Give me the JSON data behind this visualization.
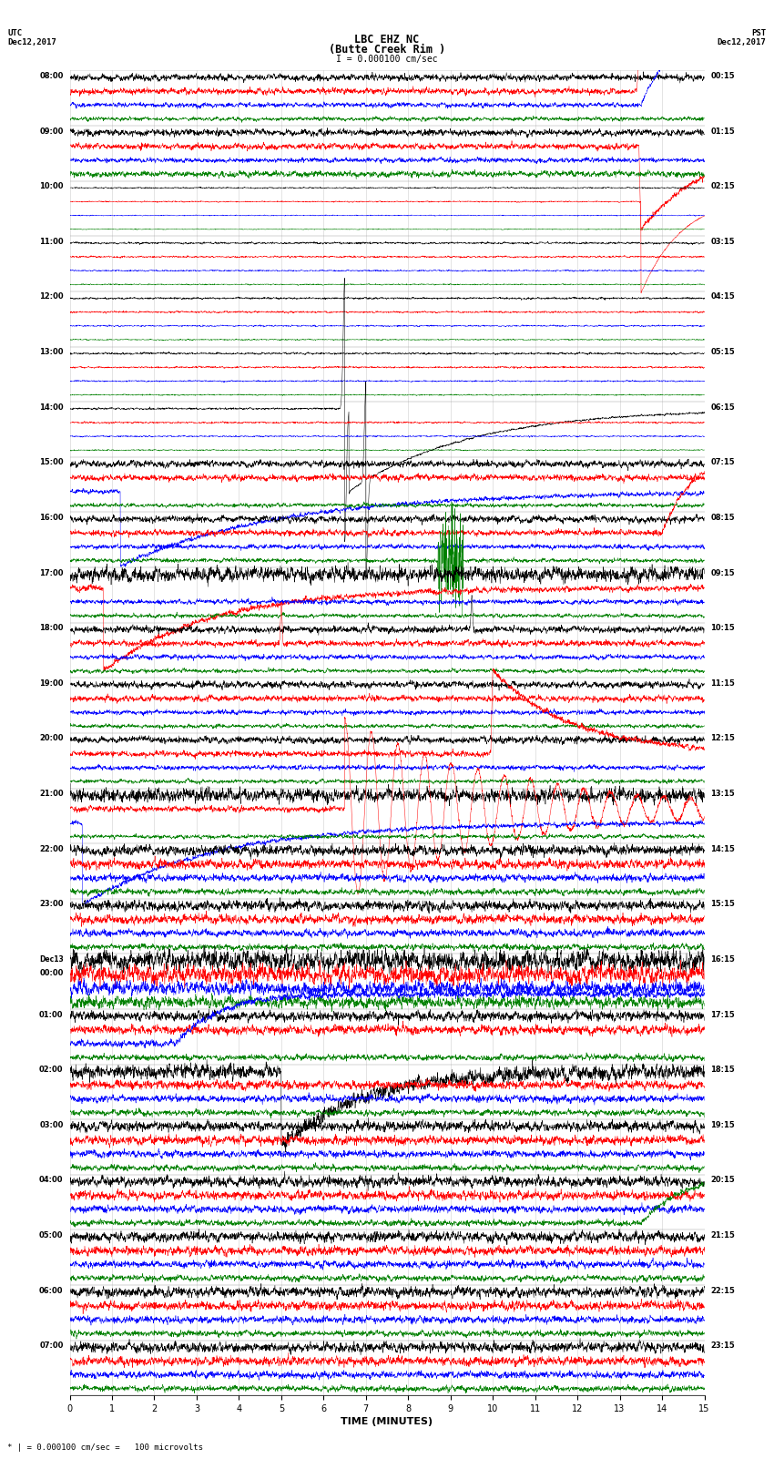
{
  "title_line1": "LBC EHZ NC",
  "title_line2": "(Butte Creek Rim )",
  "title_line3": "I = 0.000100 cm/sec",
  "left_label_top": "UTC",
  "left_date": "Dec12,2017",
  "right_label_top": "PST",
  "right_date": "Dec12,2017",
  "xlabel": "TIME (MINUTES)",
  "footer": "* | = 0.000100 cm/sec =   100 microvolts",
  "bg_color": "#ffffff",
  "grid_color": "#bbbbbb",
  "trace_colors": [
    "black",
    "red",
    "blue",
    "green"
  ],
  "utc_hour_labels": [
    "08:00",
    "09:00",
    "10:00",
    "11:00",
    "12:00",
    "13:00",
    "14:00",
    "15:00",
    "16:00",
    "17:00",
    "18:00",
    "19:00",
    "20:00",
    "21:00",
    "22:00",
    "23:00",
    "Dec13\n00:00",
    "01:00",
    "02:00",
    "03:00",
    "04:00",
    "05:00",
    "06:00",
    "07:00"
  ],
  "pst_hour_labels": [
    "00:15",
    "01:15",
    "02:15",
    "03:15",
    "04:15",
    "05:15",
    "06:15",
    "07:15",
    "08:15",
    "09:15",
    "10:15",
    "11:15",
    "12:15",
    "13:15",
    "14:15",
    "15:15",
    "16:15",
    "17:15",
    "18:15",
    "19:15",
    "20:15",
    "21:15",
    "22:15",
    "23:15"
  ],
  "n_hours": 24,
  "n_traces_per_hour": 4,
  "minutes": 15,
  "noise_amplitude": 0.25,
  "quiet_amplitude": 0.08
}
